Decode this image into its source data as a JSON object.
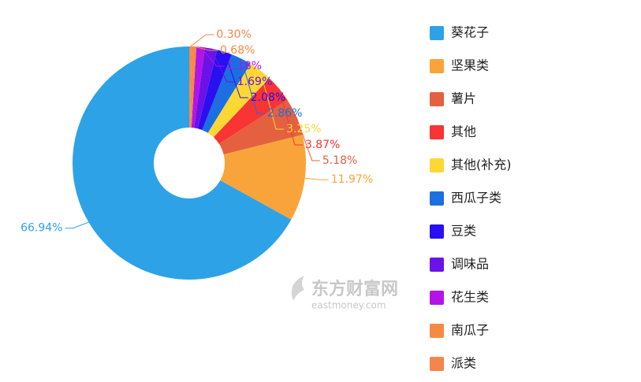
{
  "chart_data": {
    "type": "donut",
    "categories": [
      "葵花子",
      "坚果类",
      "薯片",
      "其他",
      "其他(补充)",
      "西瓜子类",
      "豆类",
      "调味品",
      "花生类",
      "南瓜子",
      "派类"
    ],
    "values": [
      66.94,
      11.97,
      5.18,
      3.87,
      3.25,
      2.86,
      2.08,
      1.69,
      1.18,
      0.68,
      0.3
    ],
    "value_labels": [
      "66.94%",
      "11.97%",
      "5.18%",
      "3.87%",
      "3.25%",
      "2.86%",
      "2.08%",
      "1.69%",
      "1.18%",
      "0.68%",
      "0.30%"
    ],
    "colors": [
      "#2ea2e6",
      "#f9a43a",
      "#e4603f",
      "#f83434",
      "#fdd835",
      "#1c6fe0",
      "#2a0ff0",
      "#6a12e8",
      "#b214e8",
      "#f58a45",
      "#f5854a"
    ],
    "direction": "counterclockwise",
    "legend": "right"
  },
  "watermark": {
    "name": "东方财富网",
    "url": "eastmoney.com"
  }
}
